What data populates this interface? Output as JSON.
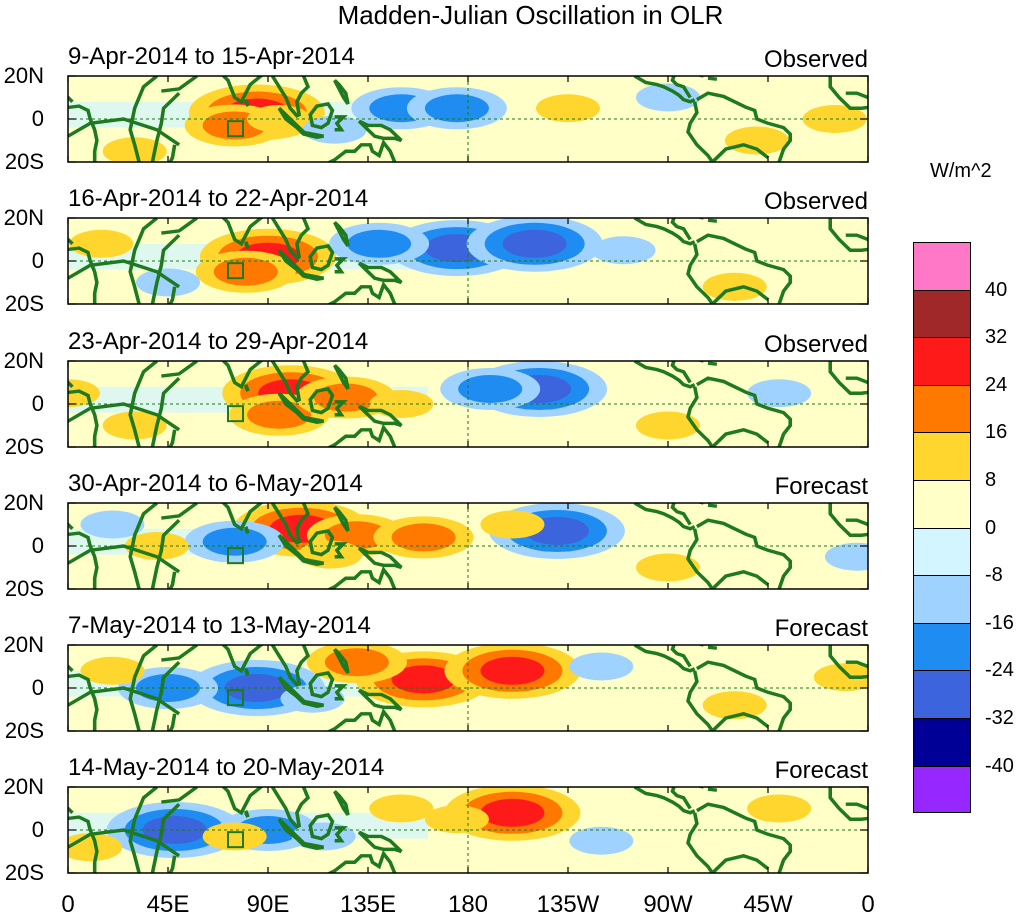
{
  "title": "Madden-Julian Oscillation in OLR",
  "units": "W/m^2",
  "lat_labels": [
    "20N",
    "0",
    "20S"
  ],
  "lon_labels": [
    "0",
    "45E",
    "90E",
    "135E",
    "180",
    "135W",
    "90W",
    "45W",
    "0"
  ],
  "colorbar": {
    "colors": [
      "#ff78c8",
      "#a02828",
      "#ff1a1a",
      "#ff7800",
      "#ffd62e",
      "#ffffc8",
      "#d2f5ff",
      "#a0d2ff",
      "#1e8cf0",
      "#3c64dc",
      "#000096",
      "#9628ff"
    ],
    "labels": [
      "40",
      "32",
      "24",
      "16",
      "8",
      "0",
      "-8",
      "-16",
      "-24",
      "-32",
      "-40"
    ]
  },
  "panels": [
    {
      "dates": "9-Apr-2014 to 15-Apr-2014",
      "kind": "Observed"
    },
    {
      "dates": "16-Apr-2014 to 22-Apr-2014",
      "kind": "Observed"
    },
    {
      "dates": "23-Apr-2014 to 29-Apr-2014",
      "kind": "Observed"
    },
    {
      "dates": "30-Apr-2014 to 6-May-2014",
      "kind": "Forecast"
    },
    {
      "dates": "7-May-2014 to 13-May-2014",
      "kind": "Forecast"
    },
    {
      "dates": "14-May-2014 to 20-May-2014",
      "kind": "Forecast"
    }
  ],
  "map_data": {
    "anomaly_blobs": [
      [
        {
          "lon": 85,
          "lat": 3,
          "v": 24
        },
        {
          "lon": 75,
          "lat": -3,
          "v": 16
        },
        {
          "lon": 95,
          "lat": 0,
          "v": 8
        },
        {
          "lon": 150,
          "lat": 5,
          "v": -16
        },
        {
          "lon": 175,
          "lat": 5,
          "v": -16
        },
        {
          "lon": 120,
          "lat": -5,
          "v": -8
        },
        {
          "lon": -135,
          "lat": 5,
          "v": 8
        },
        {
          "lon": 30,
          "lat": -15,
          "v": 8
        },
        {
          "lon": -50,
          "lat": -10,
          "v": 8
        },
        {
          "lon": -15,
          "lat": 0,
          "v": 8
        },
        {
          "lon": -90,
          "lat": 10,
          "v": -8
        }
      ],
      [
        {
          "lon": 90,
          "lat": 2,
          "v": 24
        },
        {
          "lon": 80,
          "lat": -5,
          "v": 16
        },
        {
          "lon": 175,
          "lat": 6,
          "v": -24
        },
        {
          "lon": -150,
          "lat": 8,
          "v": -24
        },
        {
          "lon": 140,
          "lat": 8,
          "v": -16
        },
        {
          "lon": 15,
          "lat": 8,
          "v": 8
        },
        {
          "lon": -60,
          "lat": -12,
          "v": 8
        },
        {
          "lon": -110,
          "lat": 5,
          "v": -8
        },
        {
          "lon": 45,
          "lat": -10,
          "v": -8
        }
      ],
      [
        {
          "lon": 100,
          "lat": 5,
          "v": 24
        },
        {
          "lon": 95,
          "lat": -5,
          "v": 16
        },
        {
          "lon": 125,
          "lat": 3,
          "v": 16
        },
        {
          "lon": 150,
          "lat": 0,
          "v": 8
        },
        {
          "lon": -148,
          "lat": 7,
          "v": -24
        },
        {
          "lon": -170,
          "lat": 7,
          "v": -16
        },
        {
          "lon": 30,
          "lat": -10,
          "v": 8
        },
        {
          "lon": -40,
          "lat": 5,
          "v": -8
        },
        {
          "lon": 0,
          "lat": 5,
          "v": 8
        },
        {
          "lon": -90,
          "lat": -10,
          "v": 8
        }
      ],
      [
        {
          "lon": 105,
          "lat": 8,
          "v": 24
        },
        {
          "lon": 130,
          "lat": 5,
          "v": 16
        },
        {
          "lon": 160,
          "lat": 4,
          "v": 16
        },
        {
          "lon": 118,
          "lat": -4,
          "v": 8
        },
        {
          "lon": -140,
          "lat": 7,
          "v": -24
        },
        {
          "lon": -160,
          "lat": 10,
          "v": 8
        },
        {
          "lon": 75,
          "lat": 2,
          "v": -16
        },
        {
          "lon": 40,
          "lat": 0,
          "v": 8
        },
        {
          "lon": -90,
          "lat": -10,
          "v": 8
        },
        {
          "lon": -5,
          "lat": -5,
          "v": -8
        },
        {
          "lon": 20,
          "lat": 10,
          "v": -8
        }
      ],
      [
        {
          "lon": 160,
          "lat": 4,
          "v": 24
        },
        {
          "lon": -160,
          "lat": 8,
          "v": 24
        },
        {
          "lon": 130,
          "lat": 12,
          "v": 16
        },
        {
          "lon": 85,
          "lat": 0,
          "v": -24
        },
        {
          "lon": 45,
          "lat": 0,
          "v": -16
        },
        {
          "lon": 110,
          "lat": -5,
          "v": -8
        },
        {
          "lon": -120,
          "lat": 10,
          "v": -8
        },
        {
          "lon": 20,
          "lat": 8,
          "v": 8
        },
        {
          "lon": -60,
          "lat": -8,
          "v": 8
        },
        {
          "lon": -10,
          "lat": 5,
          "v": 8
        }
      ],
      [
        {
          "lon": -160,
          "lat": 8,
          "v": 24
        },
        {
          "lon": 175,
          "lat": 5,
          "v": 8
        },
        {
          "lon": 48,
          "lat": 0,
          "v": -24
        },
        {
          "lon": 90,
          "lat": 0,
          "v": -16
        },
        {
          "lon": 115,
          "lat": -3,
          "v": -8
        },
        {
          "lon": 150,
          "lat": 10,
          "v": 8
        },
        {
          "lon": 75,
          "lat": -3,
          "v": 8
        },
        {
          "lon": -120,
          "lat": -5,
          "v": -8
        },
        {
          "lon": -40,
          "lat": 10,
          "v": 8
        },
        {
          "lon": 10,
          "lat": -8,
          "v": 8
        }
      ]
    ]
  }
}
